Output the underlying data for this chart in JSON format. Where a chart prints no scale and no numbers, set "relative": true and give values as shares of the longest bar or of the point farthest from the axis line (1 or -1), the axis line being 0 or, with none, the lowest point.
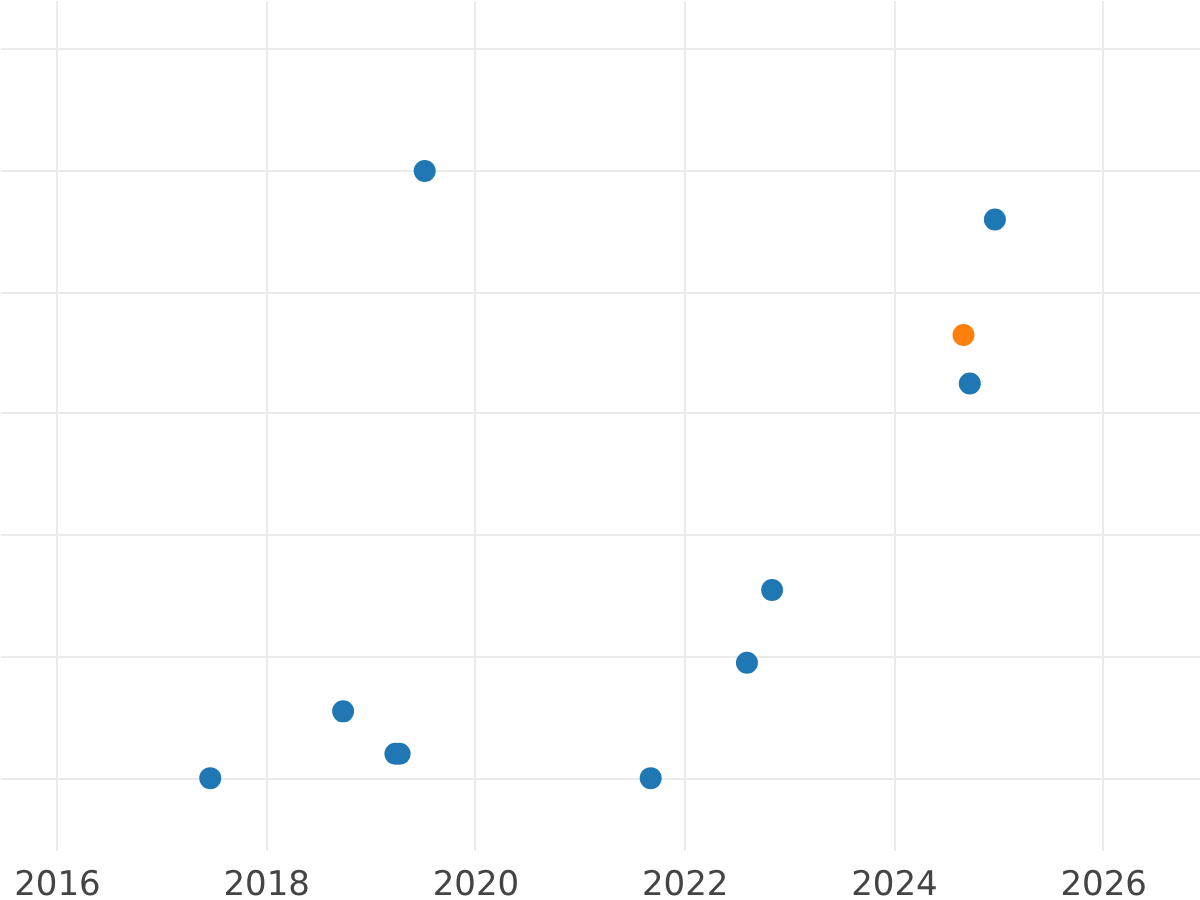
{
  "chart_data": {
    "type": "scatter",
    "relative": true,
    "xlim": [
      2015.46,
      2026.93
    ],
    "ylim": [
      -0.12,
      1.28
    ],
    "xticks": [
      2016,
      2018,
      2020,
      2022,
      2024,
      2026
    ],
    "grid": true,
    "marker": "circle",
    "series": [
      {
        "color": "#1f77b4",
        "x": [
          2017.46,
          2018.73,
          2019.23,
          2019.27,
          2019.51,
          2021.67,
          2022.59,
          2022.83,
          2024.72,
          2024.96
        ],
        "values": [
          0,
          0.11,
          0.04,
          0.04,
          1,
          0,
          0.19,
          0.31,
          0.65,
          0.92
        ]
      },
      {
        "color": "#ff7f0e",
        "x": [
          2024.66
        ],
        "values": [
          0.73
        ]
      }
    ]
  }
}
